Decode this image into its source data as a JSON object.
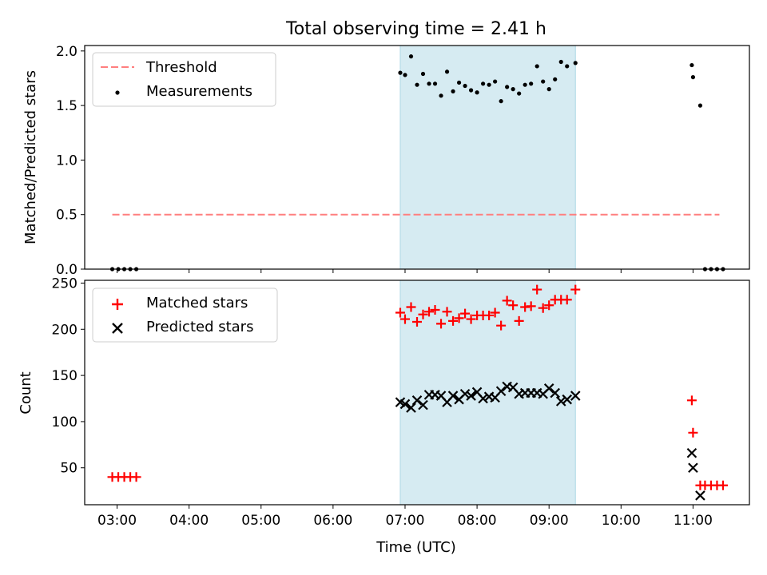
{
  "title": "Total observing time = 2.41 h",
  "xlabel": "Time (UTC)",
  "x_ticks": [
    "03:00",
    "04:00",
    "05:00",
    "06:00",
    "07:00",
    "08:00",
    "09:00",
    "10:00",
    "11:00"
  ],
  "colors": {
    "threshold": "#ff7f7f",
    "measurements": "#000000",
    "matched": "#ff0000",
    "predicted": "#000000",
    "span": "#add8e6"
  },
  "chart_data": [
    {
      "type": "scatter",
      "ylabel": "Matched/Predicted stars",
      "xlim": [
        "02:33",
        "11:47"
      ],
      "ylim": [
        0,
        2.05
      ],
      "yticks": [
        0.0,
        0.5,
        1.0,
        1.5,
        2.0
      ],
      "highlight_span": [
        "06:56",
        "09:22"
      ],
      "legend": {
        "loc": "upper left",
        "entries": [
          "Threshold",
          "Measurements"
        ]
      },
      "threshold": {
        "name": "Threshold",
        "y": 0.5,
        "x_range": [
          "02:56",
          "11:22"
        ],
        "style": "dashed"
      },
      "series": [
        {
          "name": "Measurements",
          "x": [
            "02:56",
            "03:01",
            "03:06",
            "03:11",
            "03:16",
            "06:56",
            "07:00",
            "07:05",
            "07:10",
            "07:15",
            "07:20",
            "07:25",
            "07:30",
            "07:35",
            "07:40",
            "07:45",
            "07:50",
            "07:55",
            "08:00",
            "08:05",
            "08:10",
            "08:15",
            "08:20",
            "08:25",
            "08:30",
            "08:35",
            "08:40",
            "08:45",
            "08:50",
            "08:55",
            "09:00",
            "09:05",
            "09:10",
            "09:15",
            "09:22",
            "10:59",
            "11:00",
            "11:06",
            "11:10",
            "11:15",
            "11:20",
            "11:25"
          ],
          "y": [
            0,
            0,
            0,
            0,
            0,
            1.8,
            1.78,
            1.95,
            1.69,
            1.79,
            1.7,
            1.7,
            1.59,
            1.81,
            1.63,
            1.71,
            1.68,
            1.64,
            1.62,
            1.7,
            1.69,
            1.72,
            1.54,
            1.67,
            1.65,
            1.61,
            1.69,
            1.7,
            1.86,
            1.72,
            1.65,
            1.74,
            1.9,
            1.86,
            1.89,
            1.87,
            1.76,
            1.5,
            0,
            0,
            0,
            0
          ]
        }
      ]
    },
    {
      "type": "scatter",
      "ylabel": "Count",
      "xlabel": "Time (UTC)",
      "xlim": [
        "02:33",
        "11:47"
      ],
      "ylim": [
        10,
        253
      ],
      "yticks": [
        50,
        100,
        150,
        200,
        250
      ],
      "highlight_span": [
        "06:56",
        "09:22"
      ],
      "legend": {
        "loc": "upper left",
        "entries": [
          "Matched stars",
          "Predicted stars"
        ]
      },
      "series": [
        {
          "name": "Matched stars",
          "marker": "plus",
          "x": [
            "02:56",
            "03:01",
            "03:06",
            "03:11",
            "03:16",
            "06:56",
            "07:00",
            "07:05",
            "07:10",
            "07:15",
            "07:20",
            "07:25",
            "07:30",
            "07:35",
            "07:40",
            "07:45",
            "07:50",
            "07:55",
            "08:00",
            "08:05",
            "08:10",
            "08:15",
            "08:20",
            "08:25",
            "08:30",
            "08:35",
            "08:40",
            "08:45",
            "08:50",
            "08:55",
            "09:00",
            "09:05",
            "09:10",
            "09:15",
            "09:22",
            "10:59",
            "11:00",
            "11:06",
            "11:10",
            "11:15",
            "11:20",
            "11:25"
          ],
          "y": [
            40,
            40,
            40,
            40,
            40,
            218,
            211,
            224,
            208,
            216,
            219,
            221,
            206,
            219,
            209,
            212,
            217,
            211,
            215,
            215,
            215,
            218,
            204,
            231,
            226,
            209,
            224,
            225,
            243,
            223,
            226,
            232,
            232,
            232,
            243,
            123,
            88,
            31,
            31,
            31,
            31,
            31
          ]
        },
        {
          "name": "Predicted stars",
          "marker": "x",
          "x": [
            "06:56",
            "07:00",
            "07:05",
            "07:10",
            "07:15",
            "07:20",
            "07:25",
            "07:30",
            "07:35",
            "07:40",
            "07:45",
            "07:50",
            "07:55",
            "08:00",
            "08:05",
            "08:10",
            "08:15",
            "08:20",
            "08:25",
            "08:30",
            "08:35",
            "08:40",
            "08:45",
            "08:50",
            "08:55",
            "09:00",
            "09:05",
            "09:10",
            "09:15",
            "09:22",
            "10:59",
            "11:00",
            "11:06"
          ],
          "y": [
            121,
            119,
            115,
            123,
            118,
            129,
            129,
            128,
            121,
            128,
            124,
            130,
            128,
            132,
            125,
            127,
            126,
            133,
            138,
            137,
            130,
            131,
            131,
            131,
            130,
            136,
            131,
            122,
            124,
            128,
            66,
            50,
            20
          ]
        }
      ]
    }
  ]
}
